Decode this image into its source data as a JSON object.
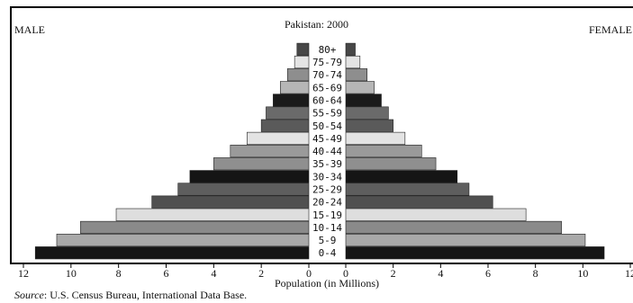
{
  "chart_data": {
    "type": "bar",
    "orientation": "horizontal-population-pyramid",
    "title": "Pakistan: 2000",
    "left_label": "MALE",
    "right_label": "FEMALE",
    "xlabel": "Population (in Millions)",
    "source_prefix": "Source",
    "source_text": ": U.S. Census Bureau, International Data Base.",
    "xlim": [
      0,
      12
    ],
    "x_ticks": [
      12,
      10,
      8,
      6,
      4,
      2,
      0
    ],
    "x_ticks_right": [
      0,
      2,
      4,
      6,
      8,
      10,
      12
    ],
    "categories": [
      "0-4",
      "5-9",
      "10-14",
      "15-19",
      "20-24",
      "25-29",
      "30-34",
      "35-39",
      "40-44",
      "45-49",
      "50-54",
      "55-59",
      "60-64",
      "65-69",
      "70-74",
      "75-79",
      "80+"
    ],
    "series": [
      {
        "name": "MALE",
        "values": [
          11.5,
          10.6,
          9.6,
          8.1,
          6.6,
          5.5,
          5.0,
          4.0,
          3.3,
          2.6,
          2.0,
          1.8,
          1.5,
          1.2,
          0.9,
          0.6,
          0.5
        ]
      },
      {
        "name": "FEMALE",
        "values": [
          10.9,
          10.1,
          9.1,
          7.6,
          6.2,
          5.2,
          4.7,
          3.8,
          3.2,
          2.5,
          2.0,
          1.8,
          1.5,
          1.2,
          0.9,
          0.6,
          0.4
        ]
      }
    ],
    "bar_colors": [
      "#161616",
      "#a9a9a9",
      "#8a8a8a",
      "#dedede",
      "#505050",
      "#5e5e5e",
      "#151515",
      "#8f8f8f",
      "#9a9a9a",
      "#e3e3e3",
      "#5a5a5a",
      "#6a6a6a",
      "#1a1a1a",
      "#b6b6b6",
      "#8e8e8e",
      "#e4e4e4",
      "#474747"
    ],
    "grid": false,
    "legend": "none"
  }
}
